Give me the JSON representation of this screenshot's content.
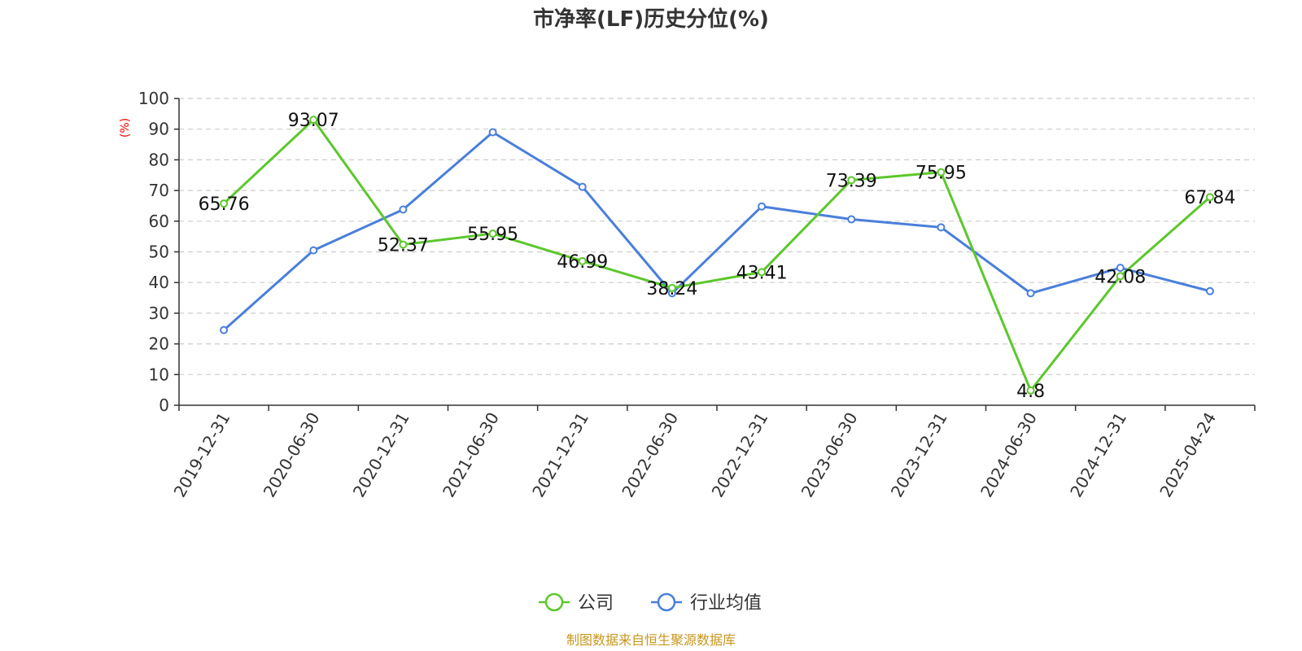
{
  "chart_data": {
    "type": "line",
    "title": "市净率(LF)历史分位(%)",
    "ylabel": "(%)",
    "xlabel": "",
    "ylim": [
      0,
      100
    ],
    "yticks": [
      0,
      10,
      20,
      30,
      40,
      50,
      60,
      70,
      80,
      90,
      100
    ],
    "categories": [
      "2019-12-31",
      "2020-06-30",
      "2020-12-31",
      "2021-06-30",
      "2021-12-31",
      "2022-06-30",
      "2022-12-31",
      "2023-06-30",
      "2023-12-31",
      "2024-06-30",
      "2024-12-31",
      "2025-04-24"
    ],
    "series": [
      {
        "name": "公司",
        "color": "#5cc72c",
        "show_labels": true,
        "values": [
          65.76,
          93.07,
          52.37,
          55.95,
          46.99,
          38.24,
          43.41,
          73.39,
          75.95,
          4.8,
          42.08,
          67.84
        ],
        "labels": [
          "65.76",
          "93.07",
          "52.37",
          "55.95",
          "46.99",
          "38.24",
          "43.41",
          "73.39",
          "75.95",
          "4.8",
          "42.08",
          "67.84"
        ]
      },
      {
        "name": "行业均值",
        "color": "#4a7fdb",
        "show_labels": false,
        "values": [
          24.5,
          50.5,
          63.8,
          89.0,
          71.2,
          36.5,
          64.8,
          60.6,
          58.0,
          36.5,
          44.8,
          37.2
        ]
      }
    ],
    "grid": true,
    "legend_position": "bottom-center"
  },
  "source_note": "制图数据来自恒生聚源数据库"
}
